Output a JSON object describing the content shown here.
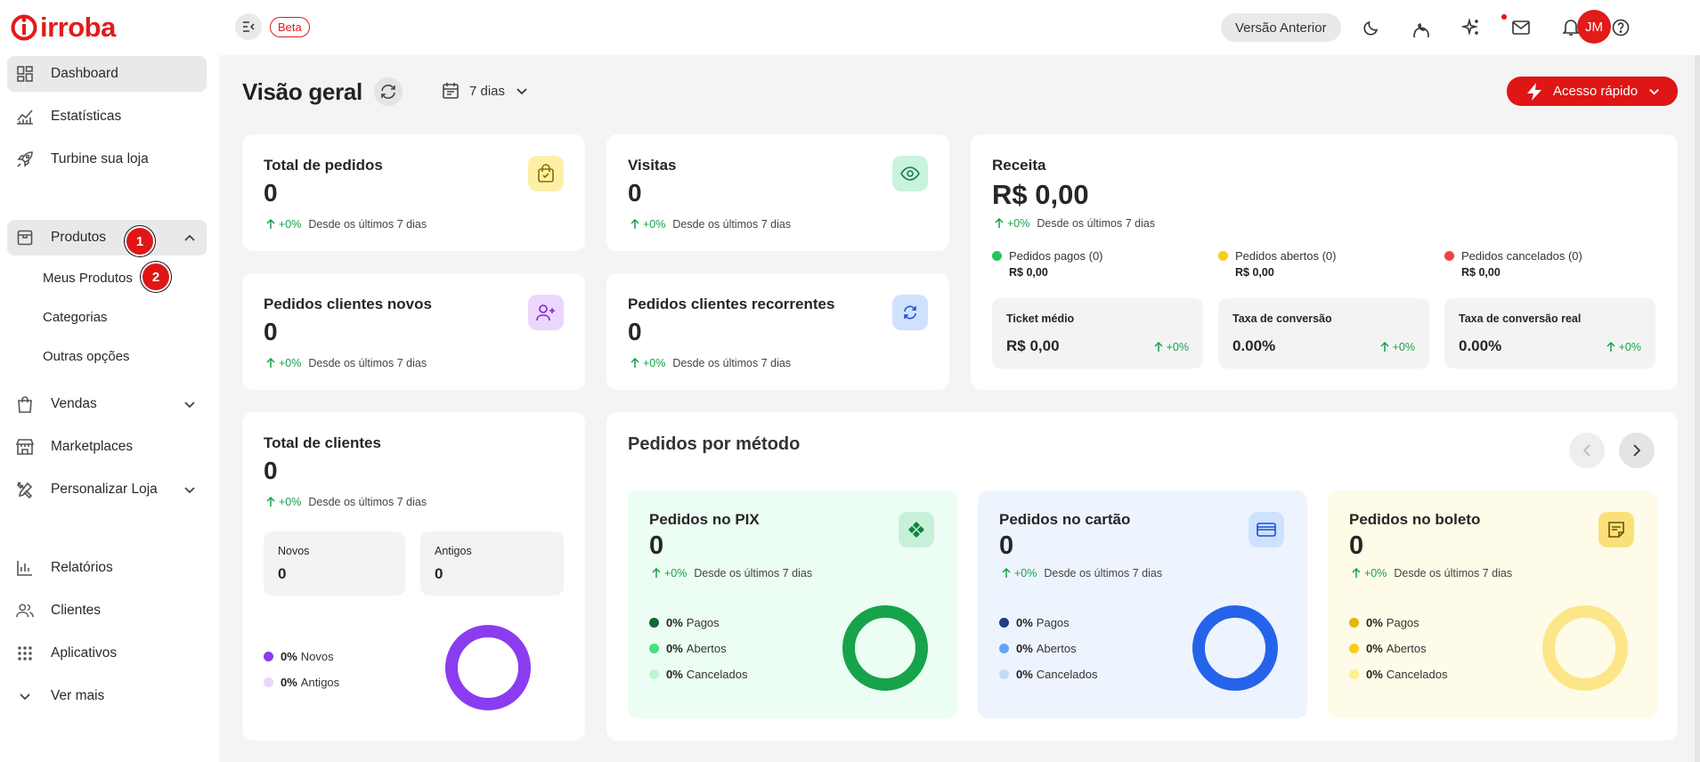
{
  "brand": {
    "name": "irroba",
    "color": "#e21b1b"
  },
  "sidebar": {
    "items": [
      {
        "label": "Dashboard",
        "icon": "dashboard-icon"
      },
      {
        "label": "Estatísticas",
        "icon": "chart-line-icon"
      },
      {
        "label": "Turbine sua loja",
        "icon": "rocket-icon"
      },
      {
        "label": "Produtos",
        "icon": "box-icon"
      },
      {
        "label": "Vendas",
        "icon": "shopping-bag-icon"
      },
      {
        "label": "Marketplaces",
        "icon": "store-icon"
      },
      {
        "label": "Personalizar Loja",
        "icon": "tools-icon"
      },
      {
        "label": "Relatórios",
        "icon": "report-icon"
      },
      {
        "label": "Clientes",
        "icon": "users-icon"
      },
      {
        "label": "Aplicativos",
        "icon": "apps-grid-icon"
      },
      {
        "label": "Ver mais",
        "icon": "chevron-down-icon"
      }
    ],
    "produtos_sub": [
      "Meus Produtos",
      "Categorias",
      "Outras opções"
    ],
    "badges": [
      "1",
      "2"
    ]
  },
  "topbar": {
    "beta": "Beta",
    "prev_version": "Versão Anterior",
    "avatar": "JM"
  },
  "header": {
    "title": "Visão geral",
    "period": "7 dias",
    "quick_access": "Acesso rápido"
  },
  "common": {
    "delta": "+0%",
    "since": "Desde os últimos 7 dias"
  },
  "stats": {
    "total_pedidos": {
      "title": "Total de pedidos",
      "value": "0"
    },
    "visitas": {
      "title": "Visitas",
      "value": "0"
    },
    "novos": {
      "title": "Pedidos clientes novos",
      "value": "0"
    },
    "recorrentes": {
      "title": "Pedidos clientes recorrentes",
      "value": "0"
    }
  },
  "receita": {
    "title": "Receita",
    "value": "R$ 0,00",
    "status": [
      {
        "label": "Pedidos pagos (0)",
        "value": "R$ 0,00",
        "color": "#22c55e"
      },
      {
        "label": "Pedidos abertos (0)",
        "value": "R$ 0,00",
        "color": "#facc15"
      },
      {
        "label": "Pedidos cancelados (0)",
        "value": "R$ 0,00",
        "color": "#ef4444"
      }
    ],
    "metrics": [
      {
        "label": "Ticket médio",
        "value": "R$ 0,00",
        "delta": "+0%"
      },
      {
        "label": "Taxa de conversão",
        "value": "0.00%",
        "delta": "+0%"
      },
      {
        "label": "Taxa de conversão real",
        "value": "0.00%",
        "delta": "+0%"
      }
    ]
  },
  "clientes": {
    "title": "Total de clientes",
    "value": "0",
    "novos_label": "Novos",
    "novos_value": "0",
    "antigos_label": "Antigos",
    "antigos_value": "0",
    "legend": [
      {
        "pct": "0%",
        "label": "Novos",
        "color": "#8b3cf0"
      },
      {
        "pct": "0%",
        "label": "Antigos",
        "color": "#e9d5ff"
      }
    ],
    "donut_color": "#8b3cf0"
  },
  "metodos": {
    "title": "Pedidos por método",
    "cards": [
      {
        "title": "Pedidos no PIX",
        "value": "0",
        "bg": "#ecfdf3",
        "icon": "pix-icon",
        "legend": [
          {
            "pct": "0%",
            "label": "Pagos",
            "color": "#166534"
          },
          {
            "pct": "0%",
            "label": "Abertos",
            "color": "#4ade80"
          },
          {
            "pct": "0%",
            "label": "Cancelados",
            "color": "#bbf7d0"
          }
        ],
        "donut": "#16a34a"
      },
      {
        "title": "Pedidos no cartão",
        "value": "0",
        "bg": "#eef4fe",
        "icon": "credit-card-icon",
        "legend": [
          {
            "pct": "0%",
            "label": "Pagos",
            "color": "#1e3a8a"
          },
          {
            "pct": "0%",
            "label": "Abertos",
            "color": "#60a5fa"
          },
          {
            "pct": "0%",
            "label": "Cancelados",
            "color": "#bfdbfe"
          }
        ],
        "donut": "#2563eb"
      },
      {
        "title": "Pedidos no boleto",
        "value": "0",
        "bg": "#fefbe8",
        "icon": "boleto-icon",
        "legend": [
          {
            "pct": "0%",
            "label": "Pagos",
            "color": "#eab308"
          },
          {
            "pct": "0%",
            "label": "Abertos",
            "color": "#facc15"
          },
          {
            "pct": "0%",
            "label": "Cancelados",
            "color": "#fef08a"
          }
        ],
        "donut": "#fde68a"
      }
    ]
  }
}
